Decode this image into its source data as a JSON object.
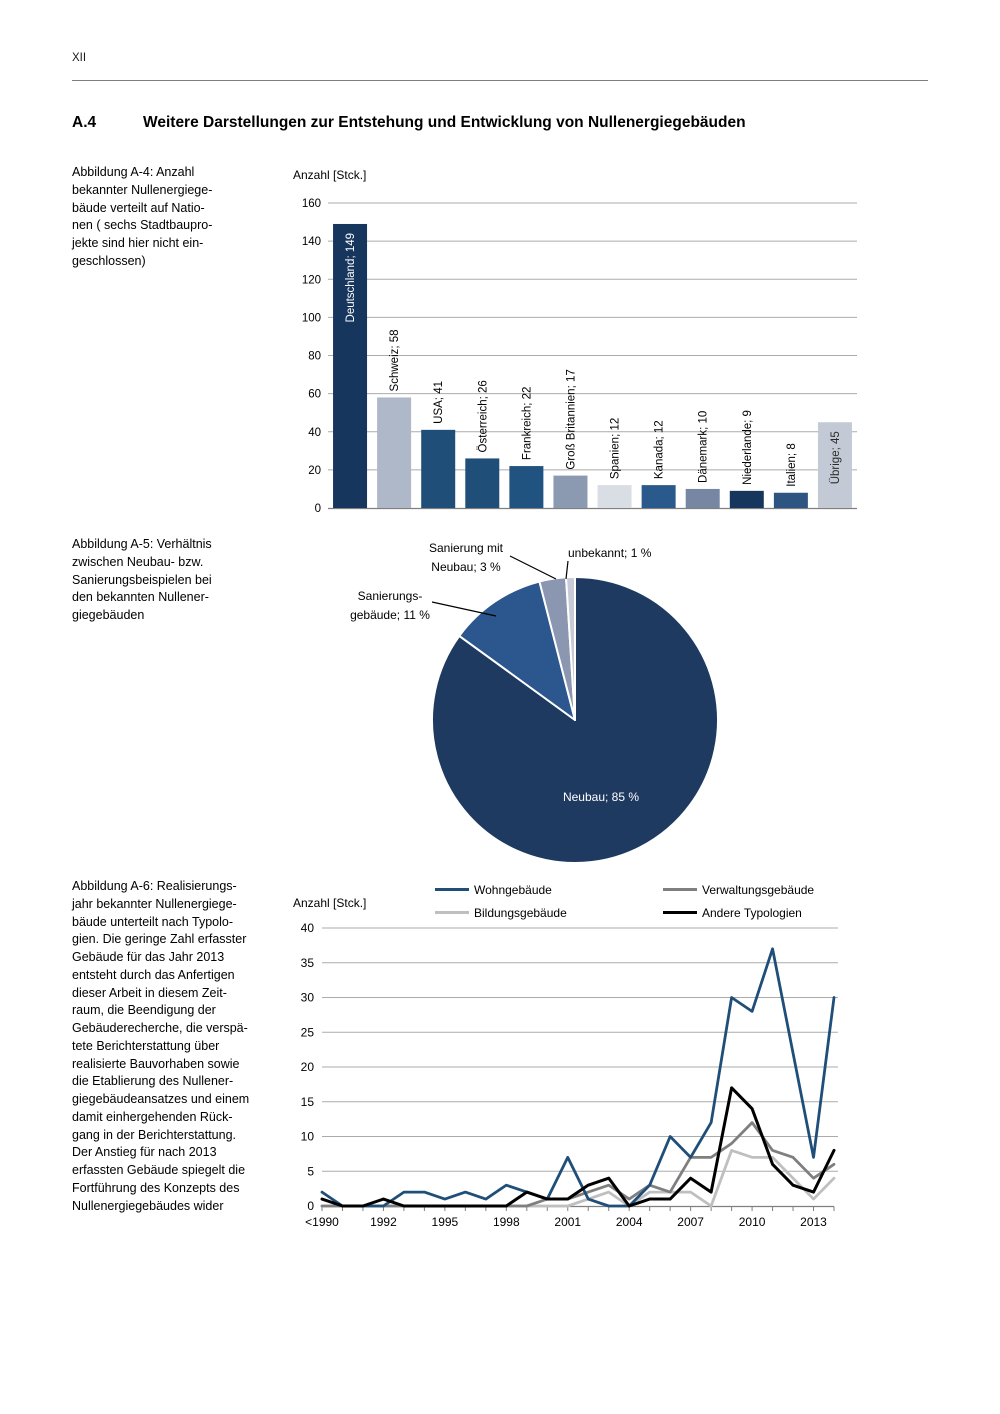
{
  "page_number": "XII",
  "section": {
    "number": "A.4",
    "title": "Weitere Darstellungen zur Entstehung und Entwicklung von Nullenergiegebäuden"
  },
  "figures": {
    "a4": {
      "caption": "Abbildung A-4: Anzahl\nbekannter Nullenergiege-\nbäude verteilt auf Natio-\nnen ( sechs Stadtbaupro-\njekte sind hier nicht ein-\ngeschlossen)"
    },
    "a5": {
      "caption": "Abbildung A-5: Verhältnis\nzwischen Neubau- bzw.\nSanierungsbeispielen bei\nden bekannten Nullener-\ngiegebäuden"
    },
    "a6": {
      "caption": "Abbildung A-6: Realisierungs-\njahr bekannter Nullenergiege-\nbäude unterteilt nach Typolo-\ngien. Die geringe Zahl erfasster\nGebäude für das Jahr 2013\nentsteht durch das Anfertigen\ndieser Arbeit in diesem Zeit-\nraum, die Beendigung der\nGebäuderecherche, die verspä-\ntete Berichterstattung über\nrealisierte Bauvorhaben sowie\ndie Etablierung des Nullener-\ngiegebäudeansatzes und einem\ndamit einhergehenden Rück-\ngang in der Berichterstattung.\nDer Anstieg für nach 2013\nerfassten Gebäude spiegelt die\nFortführung des Konzepts des\nNullenergiegebäudes wider"
    }
  },
  "chart_data": [
    {
      "id": "figure-a4",
      "type": "bar",
      "ylabel": "Anzahl [Stck.]",
      "categories": [
        "Deutschland",
        "Schweiz",
        "USA",
        "Österreich",
        "Frankreich",
        "Groß Britannien",
        "Spanien",
        "Kanada",
        "Dänemark",
        "Niederlande",
        "Italien",
        "Übrige"
      ],
      "values": [
        149,
        58,
        41,
        26,
        22,
        17,
        12,
        12,
        10,
        9,
        8,
        45
      ],
      "bar_colors": [
        "#17365D",
        "#AEB8C8",
        "#1F4E79",
        "#1F4E79",
        "#205380",
        "#8B99B1",
        "#D9DDE4",
        "#2A5A8C",
        "#7787A3",
        "#17365D",
        "#2E5481",
        "#C3CAD5"
      ],
      "label_styles": [
        "inside-light",
        "outside",
        "outside",
        "outside",
        "outside",
        "outside",
        "outside",
        "outside",
        "outside",
        "outside",
        "outside",
        "inside-dark"
      ],
      "label_separator": "; ",
      "ylim": [
        0,
        160
      ],
      "ytick_step": 20,
      "grid": true,
      "legend_position": "none"
    },
    {
      "id": "figure-a5",
      "type": "pie",
      "direction": "clockwise",
      "start_angle_deg": 0,
      "slices": [
        {
          "label": "Neubau; 85 %",
          "value": 85,
          "color": "#1F3A60",
          "label_placement": "inside"
        },
        {
          "label": "Sanierungs-\ngebäude; 11 %",
          "value": 11,
          "color": "#2B568E",
          "label_placement": "outside"
        },
        {
          "label": "Sanierung mit\nNeubau; 3 %",
          "value": 3,
          "color": "#8B97B0",
          "label_placement": "outside"
        },
        {
          "label": "unbekannt;  1 %",
          "value": 1,
          "color": "#C6CBD7",
          "label_placement": "outside"
        }
      ]
    },
    {
      "id": "figure-a6",
      "type": "line",
      "ylabel": "Anzahl [Stck.]",
      "categories": [
        "<1990",
        "1990",
        "1991",
        "1992",
        "1993",
        "1994",
        "1995",
        "1996",
        "1997",
        "1998",
        "1999",
        "2000",
        "2001",
        "2002",
        "2003",
        "2004",
        "2005",
        "2006",
        "2007",
        "2008",
        "2009",
        "2010",
        "2011",
        "2012",
        "2013",
        ">2013"
      ],
      "x_ticks_shown": [
        "<1990",
        "1992",
        "1995",
        "1998",
        "2001",
        "2004",
        "2007",
        "2010",
        "2013"
      ],
      "ylim": [
        0,
        40
      ],
      "ytick_step": 5,
      "grid": true,
      "legend_position": "top",
      "series": [
        {
          "name": "Wohngebäude",
          "color": "#1F4E79",
          "values": [
            2,
            0,
            0,
            0,
            2,
            2,
            1,
            2,
            1,
            3,
            2,
            1,
            7,
            1,
            0,
            0,
            3,
            10,
            7,
            12,
            30,
            28,
            37,
            22,
            7,
            30
          ]
        },
        {
          "name": "Bildungsgebäude",
          "color": "#BFBFBF",
          "values": [
            0,
            0,
            0,
            0,
            0,
            0,
            0,
            0,
            0,
            0,
            0,
            0,
            0,
            1,
            2,
            0,
            2,
            2,
            2,
            0,
            8,
            7,
            7,
            4,
            1,
            4
          ]
        },
        {
          "name": "Verwaltungsgebäude",
          "color": "#7F7F7F",
          "values": [
            0,
            0,
            0,
            0,
            0,
            0,
            0,
            0,
            0,
            0,
            0,
            1,
            1,
            2,
            3,
            1,
            3,
            2,
            7,
            7,
            9,
            12,
            8,
            7,
            4,
            6
          ]
        },
        {
          "name": "Andere Typologien",
          "color": "#000000",
          "values": [
            1,
            0,
            0,
            1,
            0,
            0,
            0,
            0,
            0,
            0,
            2,
            1,
            1,
            3,
            4,
            0,
            1,
            1,
            4,
            2,
            17,
            14,
            6,
            3,
            2,
            8
          ]
        }
      ]
    }
  ]
}
